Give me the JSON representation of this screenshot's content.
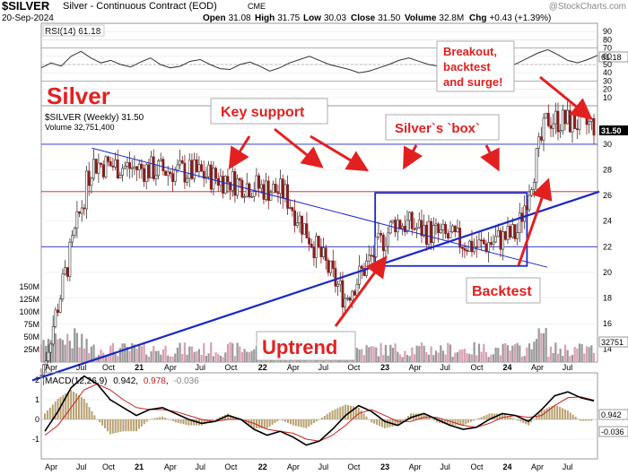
{
  "header": {
    "symbol": "$SILVER",
    "name": "Silver - Continuous Contract (EOD)",
    "exchange": "CME",
    "date": "20-Sep-2024",
    "watermark": "@StockCharts.com",
    "ohlc": [
      {
        "label": "Open",
        "value": "31.08"
      },
      {
        "label": "High",
        "value": "31.75"
      },
      {
        "label": "Low",
        "value": "30.03"
      },
      {
        "label": "Close",
        "value": "31.50"
      },
      {
        "label": "Volume",
        "value": "32.8M"
      },
      {
        "label": "Chg",
        "value": "+0.43 (+1.39%)"
      }
    ]
  },
  "chart_data": [
    {
      "type": "line",
      "panel": "RSI",
      "legend": "RSI(14) 61.18",
      "current_value": "61.18",
      "ylim": [
        0,
        100
      ],
      "yticks": [
        "90",
        "80",
        "70",
        "60",
        "50",
        "40",
        "30",
        "20",
        "10"
      ],
      "reference_lines": [
        70,
        30
      ],
      "values": [
        46,
        52,
        48,
        60,
        66,
        58,
        52,
        55,
        50,
        47,
        53,
        58,
        50,
        46,
        48,
        54,
        56,
        50,
        45,
        44,
        50,
        53,
        48,
        42,
        46,
        52,
        56,
        60,
        55,
        50,
        47,
        44,
        40,
        42,
        46,
        50,
        55,
        58,
        54,
        50,
        48,
        52,
        57,
        62,
        58,
        54,
        50,
        47,
        52,
        58,
        64,
        68,
        62,
        55,
        52,
        56,
        61
      ]
    },
    {
      "type": "candlestick",
      "panel": "price",
      "legend": "$SILVER (Weekly) 31.50",
      "volume_legend": "Volume 32,751,400",
      "current_price_label": "31.50",
      "volume_last_label": "32751",
      "ylim": [
        13,
        33
      ],
      "yticks": [
        "30",
        "28",
        "26",
        "24",
        "22",
        "20",
        "18",
        "16",
        "14"
      ],
      "volume_axis": [
        "150M",
        "125M",
        "100M",
        "75M",
        "50M",
        "25M"
      ],
      "x_axis_labels": [
        "Apr",
        "Jul",
        "Oct",
        "21",
        "Apr",
        "Jul",
        "Oct",
        "22",
        "Apr",
        "Jul",
        "Oct",
        "23",
        "Apr",
        "Jul",
        "Oct",
        "24",
        "Apr",
        "Jul"
      ],
      "key_points": [
        {
          "date": "2020-03",
          "close": 12.0
        },
        {
          "date": "2020-08",
          "close": 28.5
        },
        {
          "date": "2021-02",
          "close": 28.0
        },
        {
          "date": "2021-06",
          "close": 27.8
        },
        {
          "date": "2022-03",
          "close": 26.2
        },
        {
          "date": "2022-09",
          "close": 18.0
        },
        {
          "date": "2023-02",
          "close": 24.0
        },
        {
          "date": "2023-10",
          "close": 22.0
        },
        {
          "date": "2024-02",
          "close": 23.0
        },
        {
          "date": "2024-05",
          "close": 32.0
        },
        {
          "date": "2024-09",
          "close": 31.5
        }
      ],
      "horizontal_lines": [
        30.0,
        26.3,
        22.0
      ],
      "box": {
        "from": "2022-12",
        "to": "2024-03",
        "low": 20.5,
        "high": 26.2
      },
      "uptrend": {
        "from": "2020-03 @ 11.8",
        "to": "2024-09 @ 26.0"
      },
      "downtrend": {
        "from": "2020-08 @ 29.7",
        "to": "2024-05 @ 20.4"
      }
    },
    {
      "type": "line",
      "panel": "MACD",
      "legend_name": "MACD(12,26,9)",
      "legend_macd": "0.942",
      "legend_signal": "0.978",
      "legend_hist": "-0.036",
      "yticks": [
        "2",
        "1",
        "0",
        "-1"
      ],
      "badge_macd": "0.942",
      "badge_hist": "-0.036",
      "macd": [
        -0.6,
        0.4,
        1.6,
        2.2,
        1.8,
        1.0,
        0.6,
        0.2,
        0.5,
        0.6,
        0.3,
        0.0,
        -0.2,
        -0.1,
        0.2,
        0.0,
        -0.5,
        -0.8,
        -0.6,
        -0.9,
        -1.3,
        -1.1,
        -0.5,
        0.2,
        0.7,
        0.4,
        -0.1,
        -0.3,
        0.1,
        0.3,
        0.0,
        -0.3,
        -0.5,
        -0.4,
        0.0,
        0.3,
        0.2,
        -0.1,
        0.5,
        1.2,
        1.4,
        1.1,
        0.94
      ],
      "signal": [
        -0.8,
        -0.3,
        0.6,
        1.5,
        1.8,
        1.5,
        1.0,
        0.6,
        0.5,
        0.5,
        0.4,
        0.2,
        0.0,
        -0.1,
        0.0,
        0.0,
        -0.2,
        -0.5,
        -0.6,
        -0.7,
        -1.0,
        -1.1,
        -0.8,
        -0.3,
        0.3,
        0.5,
        0.2,
        -0.1,
        -0.1,
        0.1,
        0.1,
        -0.1,
        -0.3,
        -0.4,
        -0.2,
        0.1,
        0.2,
        0.1,
        0.2,
        0.7,
        1.1,
        1.15,
        0.978
      ],
      "x_axis_labels": [
        "Apr",
        "Jul",
        "Oct",
        "21",
        "Apr",
        "Jul",
        "Oct",
        "22",
        "Apr",
        "Jul",
        "Oct",
        "23",
        "Apr",
        "Jul",
        "Oct",
        "24",
        "Apr",
        "Jul"
      ]
    }
  ],
  "annotations": {
    "title": "Silver",
    "key_support": "Key support",
    "box_label": "Silver`s `box`",
    "breakout": "Breakout,\nbacktest\nand surge!",
    "uptrend": "Uptrend",
    "backtest": "Backtest"
  },
  "colors": {
    "candle_up": "#ffffff",
    "candle_down": "#8a1c1c",
    "trend_line": "#1a28c8",
    "support_line": "#c81a1a",
    "box_line": "#1a28c8",
    "annotation_text": "#e32020",
    "arrow": "#e32020",
    "macd_line": "#000000",
    "signal_line": "#cc2222",
    "hist_bar": "#b8a070",
    "rsi_line": "#333333"
  }
}
